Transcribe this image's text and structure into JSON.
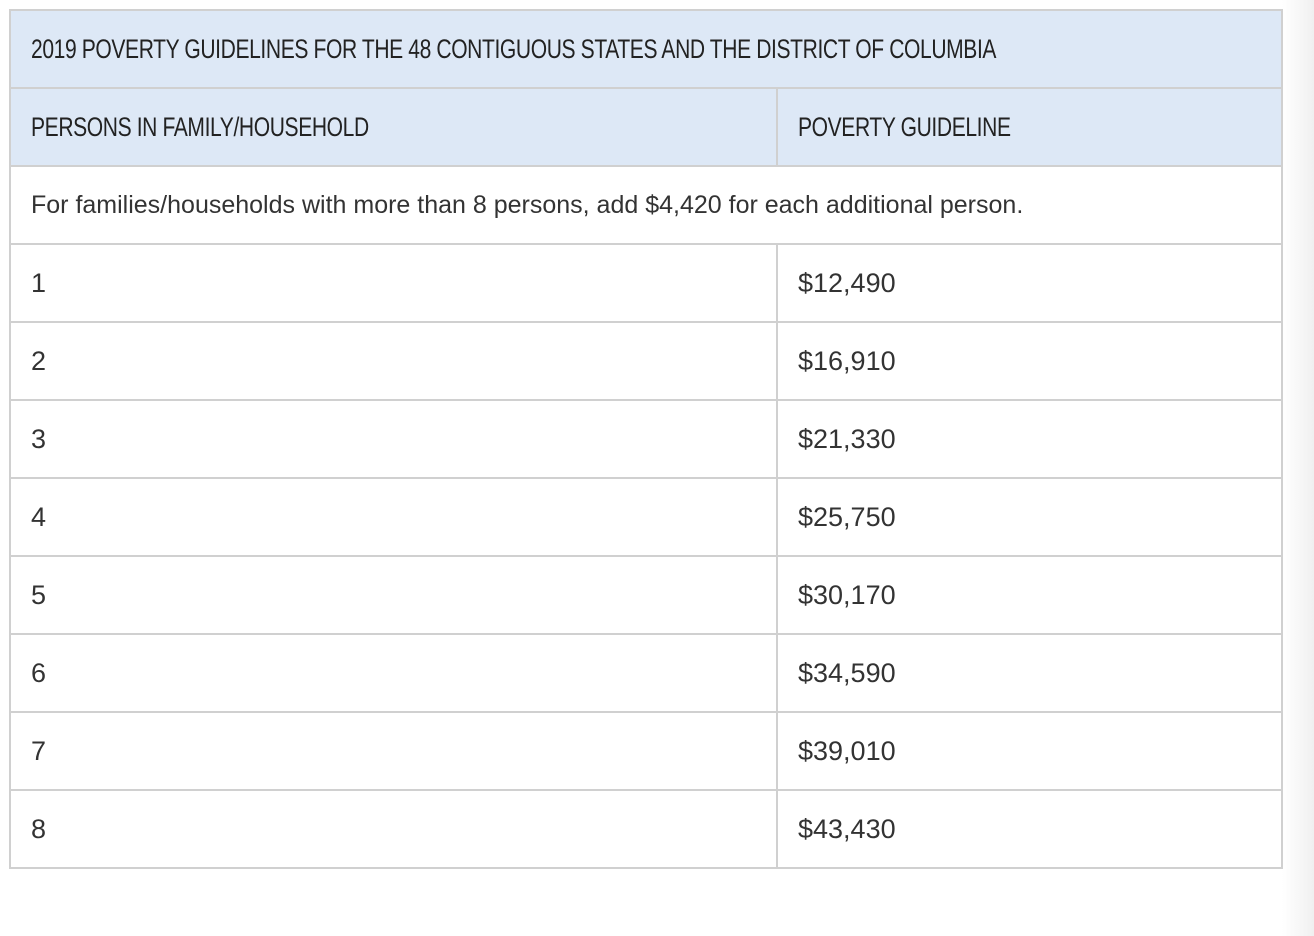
{
  "table": {
    "caption": "2019 POVERTY GUIDELINES FOR THE 48 CONTIGUOUS STATES AND THE DISTRICT OF COLUMBIA",
    "headers": {
      "persons": "PERSONS IN FAMILY/HOUSEHOLD",
      "guideline": "POVERTY GUIDELINE"
    },
    "note": "For families/households with more than 8 persons, add $4,420 for each additional person.",
    "rows": [
      {
        "persons": "1",
        "guideline": "$12,490"
      },
      {
        "persons": "2",
        "guideline": "$16,910"
      },
      {
        "persons": "3",
        "guideline": "$21,330"
      },
      {
        "persons": "4",
        "guideline": "$25,750"
      },
      {
        "persons": "5",
        "guideline": "$30,170"
      },
      {
        "persons": "6",
        "guideline": "$34,590"
      },
      {
        "persons": "7",
        "guideline": "$39,010"
      },
      {
        "persons": "8",
        "guideline": "$43,430"
      }
    ]
  }
}
